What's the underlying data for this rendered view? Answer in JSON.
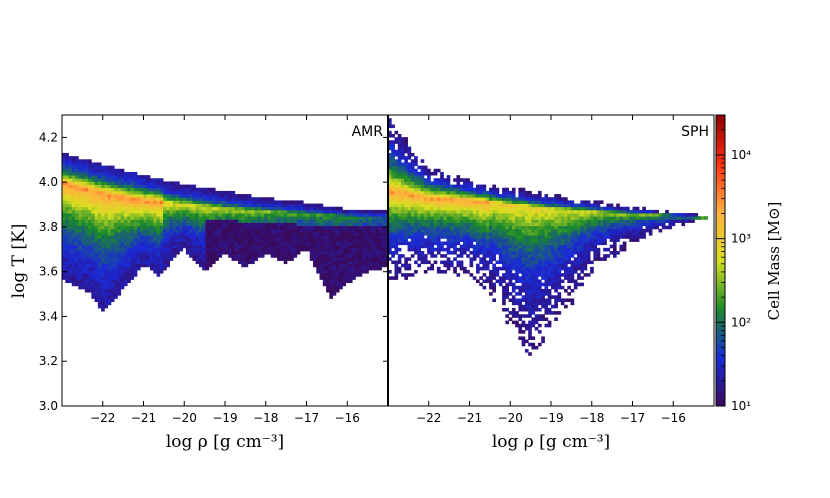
{
  "chart_data": {
    "type": "heatmap",
    "panels": [
      {
        "label": "AMR",
        "xlabel": "log ρ [g cm⁻³]",
        "ylabel": "log T [K]",
        "xlim": [
          -23.0,
          -15.0
        ],
        "ylim": [
          3.0,
          4.3
        ],
        "xticks": [
          "−22",
          "−21",
          "−20",
          "−19",
          "−18",
          "−17",
          "−16"
        ],
        "xtick_values": [
          -22,
          -21,
          -20,
          -19,
          -18,
          -17,
          -16
        ],
        "yticks": [
          "3.0",
          "3.2",
          "3.4",
          "3.6",
          "3.8",
          "4.0",
          "4.2"
        ],
        "ytick_values": [
          3.0,
          3.2,
          3.4,
          3.6,
          3.8,
          4.0,
          4.2
        ],
        "ridge": [
          [
            -23.0,
            4.0
          ],
          [
            -22.0,
            3.95
          ],
          [
            -21.0,
            3.92
          ],
          [
            -20.0,
            3.9
          ],
          [
            -19.0,
            3.88
          ],
          [
            -18.0,
            3.87
          ],
          [
            -17.0,
            3.86
          ],
          [
            -16.0,
            3.85
          ],
          [
            -15.0,
            3.85
          ]
        ],
        "upper_edge": [
          [
            -23.0,
            4.13
          ],
          [
            -22.0,
            4.08
          ],
          [
            -21.0,
            4.03
          ],
          [
            -20.0,
            3.99
          ],
          [
            -19.0,
            3.96
          ],
          [
            -18.0,
            3.93
          ],
          [
            -17.0,
            3.91
          ],
          [
            -16.0,
            3.88
          ],
          [
            -15.0,
            3.87
          ]
        ],
        "lower_edge": [
          [
            -23.0,
            3.57
          ],
          [
            -22.3,
            3.5
          ],
          [
            -22.0,
            3.42
          ],
          [
            -21.7,
            3.48
          ],
          [
            -21.3,
            3.56
          ],
          [
            -21.0,
            3.63
          ],
          [
            -20.6,
            3.58
          ],
          [
            -20.3,
            3.65
          ],
          [
            -20.0,
            3.7
          ],
          [
            -19.5,
            3.6
          ],
          [
            -19.0,
            3.68
          ],
          [
            -18.5,
            3.62
          ],
          [
            -18.0,
            3.68
          ],
          [
            -17.5,
            3.64
          ],
          [
            -17.0,
            3.7
          ],
          [
            -16.4,
            3.48
          ],
          [
            -16.0,
            3.55
          ],
          [
            -15.5,
            3.6
          ],
          [
            -15.0,
            3.62
          ]
        ]
      },
      {
        "label": "SPH",
        "xlabel": "log ρ [g cm⁻³]",
        "ylabel": "",
        "xlim": [
          -23.0,
          -15.0
        ],
        "ylim": [
          3.0,
          4.3
        ],
        "xticks": [
          "−22",
          "−21",
          "−20",
          "−19",
          "−18",
          "−17",
          "−16"
        ],
        "xtick_values": [
          -22,
          -21,
          -20,
          -19,
          -18,
          -17,
          -16
        ],
        "ridge": [
          [
            -23.0,
            3.96
          ],
          [
            -22.0,
            3.93
          ],
          [
            -21.0,
            3.92
          ],
          [
            -20.0,
            3.9
          ],
          [
            -19.0,
            3.88
          ],
          [
            -18.0,
            3.87
          ],
          [
            -17.0,
            3.86
          ],
          [
            -16.0,
            3.85
          ],
          [
            -15.2,
            3.84
          ]
        ],
        "upper_edge": [
          [
            -23.0,
            4.3
          ],
          [
            -22.5,
            4.18
          ],
          [
            -22.0,
            4.07
          ],
          [
            -21.0,
            4.01
          ],
          [
            -20.0,
            3.98
          ],
          [
            -19.0,
            3.95
          ],
          [
            -18.0,
            3.92
          ],
          [
            -17.0,
            3.89
          ],
          [
            -16.0,
            3.87
          ],
          [
            -15.2,
            3.85
          ]
        ],
        "lower_edge": [
          [
            -23.0,
            3.55
          ],
          [
            -22.0,
            3.6
          ],
          [
            -21.0,
            3.58
          ],
          [
            -20.5,
            3.5
          ],
          [
            -20.0,
            3.35
          ],
          [
            -19.5,
            3.22
          ],
          [
            -19.0,
            3.33
          ],
          [
            -18.5,
            3.45
          ],
          [
            -18.0,
            3.6
          ],
          [
            -17.0,
            3.72
          ],
          [
            -16.0,
            3.8
          ],
          [
            -15.2,
            3.84
          ]
        ]
      }
    ],
    "colorbar": {
      "label": "Cell Mass [M⊙]",
      "scale": "log",
      "lim": [
        10,
        30000
      ],
      "ticks": [
        10,
        100,
        1000,
        10000
      ],
      "tick_labels": [
        "10¹",
        "10²",
        "10³",
        "10⁴"
      ],
      "colormap": [
        "#3a0a5c",
        "#1a2ad8",
        "#1a8a2a",
        "#d8e020",
        "#ffb040",
        "#ff3010",
        "#8a0000"
      ]
    }
  }
}
